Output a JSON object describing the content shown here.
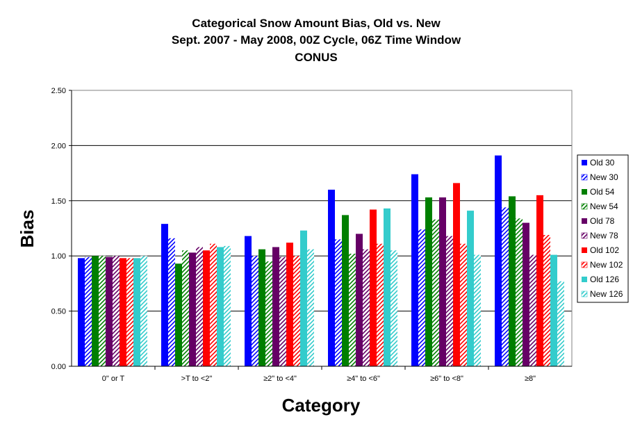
{
  "chart_data": {
    "type": "bar",
    "title": [
      "Categorical Snow Amount Bias, Old vs. New",
      "Sept. 2007 - May 2008, 00Z Cycle, 06Z Time Window",
      "CONUS"
    ],
    "xlabel": "Category",
    "ylabel": "Bias",
    "ylim": [
      0,
      2.5
    ],
    "yticks": [
      "0.00",
      "0.50",
      "1.00",
      "1.50",
      "2.00",
      "2.50"
    ],
    "grid": "horizontal",
    "legend_position": "right",
    "categories": [
      "0\" or T",
      ">T to <2\"",
      "≥2\" to <4\"",
      "≥4\" to <6\"",
      "≥6\" to <8\"",
      "≥8\""
    ],
    "series": [
      {
        "name": "Old 30",
        "color": "#0000ff",
        "pattern": "solid",
        "values": [
          0.98,
          1.29,
          1.18,
          1.6,
          1.74,
          1.91
        ]
      },
      {
        "name": "New 30",
        "color": "#0000ff",
        "pattern": "hatch",
        "values": [
          0.99,
          1.16,
          1.0,
          1.15,
          1.24,
          1.44
        ]
      },
      {
        "name": "Old 54",
        "color": "#007f00",
        "pattern": "solid",
        "values": [
          1.0,
          0.93,
          1.06,
          1.37,
          1.53,
          1.54
        ]
      },
      {
        "name": "New 54",
        "color": "#007f00",
        "pattern": "hatch",
        "values": [
          1.0,
          1.05,
          0.95,
          1.02,
          1.33,
          1.34
        ]
      },
      {
        "name": "Old 78",
        "color": "#660066",
        "pattern": "solid",
        "values": [
          0.99,
          1.03,
          1.08,
          1.2,
          1.53,
          1.3
        ]
      },
      {
        "name": "New 78",
        "color": "#660066",
        "pattern": "hatch",
        "values": [
          1.0,
          1.08,
          0.99,
          1.06,
          1.18,
          1.01
        ]
      },
      {
        "name": "Old 102",
        "color": "#ff0000",
        "pattern": "solid",
        "values": [
          0.98,
          1.05,
          1.12,
          1.42,
          1.66,
          1.55
        ]
      },
      {
        "name": "New 102",
        "color": "#ff0000",
        "pattern": "hatch",
        "values": [
          0.98,
          1.11,
          1.0,
          1.11,
          1.11,
          1.19
        ]
      },
      {
        "name": "Old 126",
        "color": "#33cccc",
        "pattern": "solid",
        "values": [
          0.98,
          1.08,
          1.23,
          1.43,
          1.41,
          1.01
        ]
      },
      {
        "name": "New 126",
        "color": "#33cccc",
        "pattern": "hatch",
        "values": [
          1.0,
          1.09,
          1.06,
          1.05,
          1.01,
          0.77
        ]
      }
    ]
  }
}
